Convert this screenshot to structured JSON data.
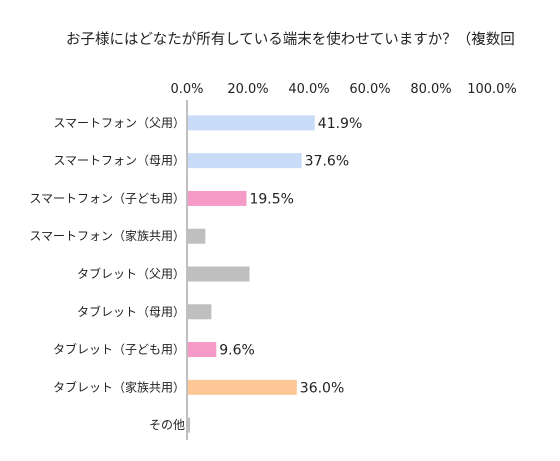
{
  "chart_data": {
    "type": "bar",
    "orientation": "horizontal",
    "title": "お子様にはどなたが所有している端末を使わせていますか？（複数回",
    "xlim": [
      0,
      100
    ],
    "x_ticks": [
      "0.0%",
      "20.0%",
      "40.0%",
      "60.0%",
      "80.0%",
      "100.0%"
    ],
    "x_tick_values": [
      0,
      20,
      40,
      60,
      80,
      100
    ],
    "axis_position": "top",
    "grid": false,
    "legend": "none",
    "categories": [
      "スマートフォン（父用）",
      "スマートフォン（母用）",
      "スマートフォン（子ども用）",
      "スマートフォン（家族共用）",
      "タブレット（父用）",
      "タブレット（母用）",
      "タブレット（子ども用）",
      "タブレット（家族共用）",
      "その他"
    ],
    "values": [
      41.9,
      37.6,
      19.5,
      6.0,
      20.5,
      8.0,
      9.6,
      36.0,
      1.0
    ],
    "data_labels": [
      "41.9%",
      "37.6%",
      "19.5%",
      "",
      "",
      "",
      "9.6%",
      "36.0%",
      ""
    ],
    "colors": [
      "#c9dcf7",
      "#c9dcf7",
      "#f59ac7",
      "#bfbfbf",
      "#bfbfbf",
      "#bfbfbf",
      "#f59ac7",
      "#fdc796",
      "#bfbfbf"
    ]
  }
}
